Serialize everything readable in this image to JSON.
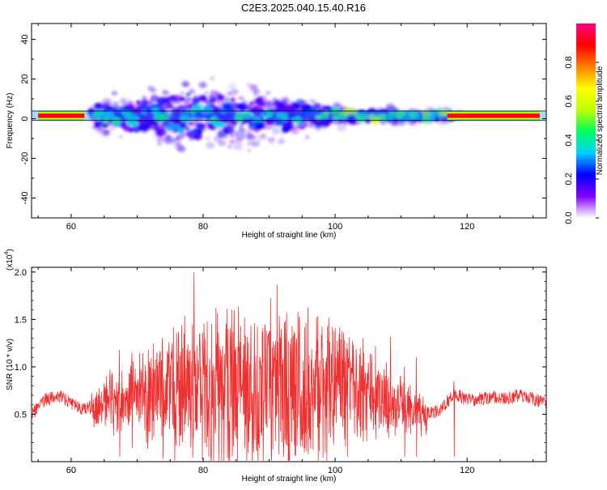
{
  "title": "C2E3.2025.040.15.40.R16",
  "chart_data": [
    {
      "type": "heatmap",
      "xlabel": "Height of straight line (km)",
      "ylabel": "Frequency (Hz)",
      "xlim": [
        54,
        132
      ],
      "ylim": [
        -50,
        48
      ],
      "xticks": [
        60,
        80,
        100,
        120
      ],
      "yticks": [
        -40,
        -20,
        0,
        20,
        40
      ],
      "colorbar": {
        "label": "Normalized spectral amplitude",
        "range": [
          0,
          1
        ],
        "ticks": [
          "0.0",
          "0.2",
          "0.4",
          "0.6",
          "0.8"
        ],
        "colors": [
          "#ffffff",
          "#8000ff",
          "#0000ff",
          "#00d0ff",
          "#00ff60",
          "#c0ff00",
          "#ffff00",
          "#ff8000",
          "#ff0000",
          "#ff0080"
        ]
      },
      "spectral_band": {
        "center_hz": 1.5,
        "half_width_hz": 1.5,
        "strong_segments_km": [
          [
            55,
            62
          ],
          [
            117,
            131
          ]
        ]
      },
      "clusters": [
        {
          "x": 64,
          "y": 2,
          "amp": 0.45
        },
        {
          "x": 66,
          "y": 0,
          "amp": 0.5
        },
        {
          "x": 68,
          "y": 3,
          "amp": 0.35
        },
        {
          "x": 70,
          "y": -1,
          "amp": 0.4
        },
        {
          "x": 72,
          "y": 5,
          "amp": 0.3
        },
        {
          "x": 74,
          "y": 1,
          "amp": 0.45
        },
        {
          "x": 76,
          "y": -4,
          "amp": 0.3
        },
        {
          "x": 78,
          "y": 2,
          "amp": 0.4
        },
        {
          "x": 79,
          "y": -8,
          "amp": 0.25
        },
        {
          "x": 80,
          "y": 4,
          "amp": 0.35
        },
        {
          "x": 82,
          "y": -2,
          "amp": 0.45
        },
        {
          "x": 84,
          "y": 6,
          "amp": 0.3
        },
        {
          "x": 86,
          "y": 1,
          "amp": 0.5
        },
        {
          "x": 88,
          "y": -3,
          "amp": 0.35
        },
        {
          "x": 90,
          "y": 3,
          "amp": 0.4
        },
        {
          "x": 92,
          "y": 0,
          "amp": 0.45
        },
        {
          "x": 94,
          "y": -2,
          "amp": 0.35
        },
        {
          "x": 96,
          "y": 4,
          "amp": 0.3
        },
        {
          "x": 98,
          "y": 1,
          "amp": 0.5
        },
        {
          "x": 100,
          "y": 2,
          "amp": 0.55
        },
        {
          "x": 102,
          "y": 3,
          "amp": 0.6
        },
        {
          "x": 104,
          "y": 1,
          "amp": 0.55
        },
        {
          "x": 106,
          "y": 0,
          "amp": 0.6
        },
        {
          "x": 108,
          "y": 2,
          "amp": 0.5
        },
        {
          "x": 110,
          "y": 1,
          "amp": 0.45
        },
        {
          "x": 112,
          "y": 2,
          "amp": 0.45
        },
        {
          "x": 114,
          "y": 1,
          "amp": 0.5
        },
        {
          "x": 116,
          "y": 2,
          "amp": 0.55
        }
      ]
    },
    {
      "type": "line",
      "xlabel": "Height of straight line (km)",
      "ylabel": "SNR (10 * v/v)",
      "yscale_label": "(x10",
      "yscale_exponent": "4",
      "yscale_close": ")",
      "xlim": [
        54,
        132
      ],
      "ylim": [
        0,
        2.05
      ],
      "xticks": [
        60,
        80,
        100,
        120
      ],
      "yticks": [
        0.5,
        1.0,
        1.5,
        2.0
      ],
      "ytick_labels": [
        "0.5",
        "1.0",
        "1.5",
        "2.0"
      ],
      "line_color": "#f03030",
      "series": [
        {
          "x": [
            54,
            56,
            58,
            60,
            62,
            64,
            66,
            68,
            70,
            72,
            74,
            76,
            78,
            80,
            82,
            84,
            86,
            88,
            90,
            92,
            94,
            96,
            98,
            100,
            102,
            104,
            106,
            108,
            110,
            112,
            114,
            116,
            118,
            120,
            122,
            124,
            126,
            128,
            130,
            132
          ],
          "y": [
            0.5,
            0.65,
            0.7,
            0.62,
            0.55,
            0.6,
            0.62,
            0.66,
            0.68,
            0.7,
            0.72,
            0.72,
            0.74,
            0.74,
            0.74,
            0.74,
            0.74,
            0.74,
            0.74,
            0.74,
            0.74,
            0.74,
            0.74,
            0.74,
            0.72,
            0.7,
            0.68,
            0.65,
            0.6,
            0.55,
            0.5,
            0.55,
            0.72,
            0.65,
            0.66,
            0.68,
            0.67,
            0.7,
            0.66,
            0.62
          ]
        }
      ],
      "peaks": [
        {
          "x": 67.3,
          "y": 1.18
        },
        {
          "x": 69.2,
          "y": 1.15
        },
        {
          "x": 72.5,
          "y": 1.25
        },
        {
          "x": 75.5,
          "y": 1.42
        },
        {
          "x": 77.1,
          "y": 1.35
        },
        {
          "x": 78.6,
          "y": 2.0
        },
        {
          "x": 80.6,
          "y": 1.48
        },
        {
          "x": 82.2,
          "y": 1.57
        },
        {
          "x": 83.8,
          "y": 1.4
        },
        {
          "x": 84.7,
          "y": 1.6
        },
        {
          "x": 86.4,
          "y": 1.33
        },
        {
          "x": 87.8,
          "y": 1.46
        },
        {
          "x": 89.6,
          "y": 1.38
        },
        {
          "x": 91.2,
          "y": 1.87
        },
        {
          "x": 92.5,
          "y": 1.3
        },
        {
          "x": 93.9,
          "y": 1.35
        },
        {
          "x": 95.4,
          "y": 1.42
        },
        {
          "x": 97.3,
          "y": 1.28
        },
        {
          "x": 99.6,
          "y": 1.42
        },
        {
          "x": 101.8,
          "y": 1.25
        },
        {
          "x": 104.2,
          "y": 1.3
        },
        {
          "x": 106.1,
          "y": 1.22
        },
        {
          "x": 108.4,
          "y": 1.32
        },
        {
          "x": 110.5,
          "y": 1.0
        },
        {
          "x": 112.3,
          "y": 1.1
        },
        {
          "x": 118.0,
          "y": 0.85
        }
      ]
    }
  ]
}
